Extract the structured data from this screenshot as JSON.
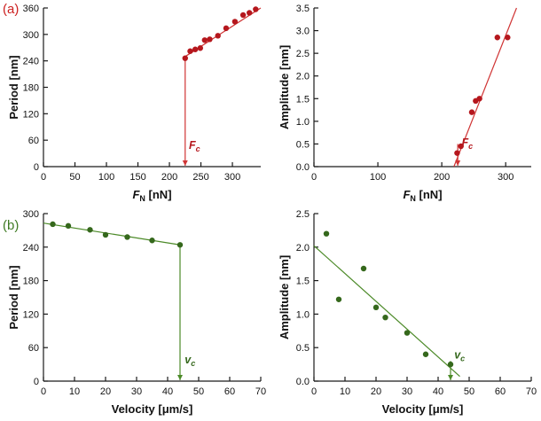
{
  "panels": {
    "a": "(a)",
    "b": "(b)"
  },
  "colors": {
    "panel_a": "#cc1f1f",
    "panel_b": "#3e7a22"
  },
  "chart_data": [
    {
      "name": "period-vs-normal-force",
      "type": "scatter",
      "color": "#b5171d",
      "line_color": "#d03434",
      "xlim": [
        0,
        345
      ],
      "ylim": [
        0,
        360
      ],
      "xticks": [
        0,
        50,
        100,
        150,
        200,
        250,
        300
      ],
      "xtick_labels": [
        "0",
        "50",
        "100",
        "150",
        "200",
        "250",
        "300"
      ],
      "yticks": [
        0,
        60,
        120,
        180,
        240,
        300,
        360
      ],
      "ytick_labels": [
        "0",
        "60",
        "120",
        "180",
        "240",
        "300",
        "360"
      ],
      "xlabel": [
        {
          "t": "F",
          "s": "i"
        },
        {
          "t": "N",
          "s": "sub"
        },
        {
          "t": " [nN]",
          "s": "n"
        }
      ],
      "ylabel": "Period [nm]",
      "points": [
        [
          225,
          246
        ],
        [
          233,
          262
        ],
        [
          241,
          266
        ],
        [
          249,
          269
        ],
        [
          256,
          287
        ],
        [
          264,
          289
        ],
        [
          277,
          297
        ],
        [
          290,
          314
        ],
        [
          304,
          329
        ],
        [
          317,
          344
        ],
        [
          327,
          349
        ],
        [
          337,
          357
        ]
      ],
      "line": [
        [
          222,
          247
        ],
        [
          345,
          360
        ]
      ],
      "marker": {
        "x": 225,
        "y_from": 246,
        "y_to": 0,
        "arrow": true,
        "label": [
          {
            "t": "F",
            "s": "i"
          },
          {
            "t": "c",
            "s": "sub"
          }
        ],
        "label_x": 231,
        "label_y": 40
      }
    },
    {
      "name": "amplitude-vs-normal-force",
      "type": "scatter",
      "color": "#b5171d",
      "line_color": "#d03434",
      "xlim": [
        0,
        340
      ],
      "ylim": [
        0,
        3.5
      ],
      "xticks": [
        0,
        100,
        200,
        300
      ],
      "xtick_labels": [
        "0",
        "100",
        "200",
        "300"
      ],
      "yticks": [
        0,
        0.5,
        1,
        1.5,
        2,
        2.5,
        3,
        3.5
      ],
      "ytick_labels": [
        "0.0",
        "0.5",
        "1.0",
        "1.5",
        "2.0",
        "2.5",
        "3.0",
        "3.5"
      ],
      "xlabel": [
        {
          "t": "F",
          "s": "i"
        },
        {
          "t": "N",
          "s": "sub"
        },
        {
          "t": " [nN]",
          "s": "n"
        }
      ],
      "ylabel": "Amplitude [nm]",
      "points": [
        [
          224,
          0.3
        ],
        [
          230,
          0.45
        ],
        [
          247,
          1.2
        ],
        [
          253,
          1.45
        ],
        [
          259,
          1.5
        ],
        [
          287,
          2.85
        ],
        [
          303,
          2.85
        ]
      ],
      "line": [
        [
          219,
          0
        ],
        [
          317,
          3.5
        ]
      ],
      "marker": {
        "x": 225,
        "y_from": 0.5,
        "y_to": 0,
        "arrow": true,
        "label": [
          {
            "t": "F",
            "s": "i"
          },
          {
            "t": "c",
            "s": "sub"
          }
        ],
        "label_x": 231,
        "label_y": 0.45
      }
    },
    {
      "name": "period-vs-velocity",
      "type": "scatter",
      "color": "#35681c",
      "line_color": "#4c8a28",
      "xlim": [
        0,
        70
      ],
      "ylim": [
        0,
        300
      ],
      "xticks": [
        0,
        10,
        20,
        30,
        40,
        50,
        60,
        70
      ],
      "xtick_labels": [
        "0",
        "10",
        "20",
        "30",
        "40",
        "50",
        "60",
        "70"
      ],
      "yticks": [
        0,
        60,
        120,
        180,
        240,
        300
      ],
      "ytick_labels": [
        "0",
        "60",
        "120",
        "180",
        "240",
        "300"
      ],
      "xlabel": [
        {
          "t": "Velocity [μm/s]",
          "s": "n"
        }
      ],
      "ylabel": "Period [nm]",
      "points": [
        [
          3,
          281
        ],
        [
          8,
          278
        ],
        [
          15,
          271
        ],
        [
          20,
          262
        ],
        [
          27,
          258
        ],
        [
          35,
          252
        ],
        [
          44,
          244
        ]
      ],
      "line": [
        [
          0,
          283
        ],
        [
          44,
          244
        ]
      ],
      "marker": {
        "x": 44,
        "y_from": 244,
        "y_to": 0,
        "arrow": true,
        "label": [
          {
            "t": "v",
            "s": "i"
          },
          {
            "t": "c",
            "s": "sub"
          }
        ],
        "label_x": 45.5,
        "label_y": 32
      }
    },
    {
      "name": "amplitude-vs-velocity",
      "type": "scatter",
      "color": "#35681c",
      "line_color": "#4c8a28",
      "xlim": [
        0,
        70
      ],
      "ylim": [
        0,
        2.5
      ],
      "xticks": [
        0,
        10,
        20,
        30,
        40,
        50,
        60,
        70
      ],
      "xtick_labels": [
        "0",
        "10",
        "20",
        "30",
        "40",
        "50",
        "60",
        "70"
      ],
      "yticks": [
        0,
        0.5,
        1,
        1.5,
        2,
        2.5
      ],
      "ytick_labels": [
        "0.0",
        "0.5",
        "1.0",
        "1.5",
        "2.0",
        "2.5"
      ],
      "xlabel": [
        {
          "t": "Velocity [μm/s]",
          "s": "n"
        }
      ],
      "ylabel": "Amplitude [nm]",
      "points": [
        [
          4,
          2.2
        ],
        [
          8,
          1.22
        ],
        [
          16,
          1.68
        ],
        [
          20,
          1.1
        ],
        [
          23,
          0.95
        ],
        [
          30,
          0.72
        ],
        [
          36,
          0.4
        ],
        [
          44,
          0.25
        ]
      ],
      "line": [
        [
          0,
          2.02
        ],
        [
          47,
          0.07
        ]
      ],
      "marker": {
        "x": 44,
        "y_from": 0.3,
        "y_to": 0,
        "arrow": true,
        "label": [
          {
            "t": "v",
            "s": "i"
          },
          {
            "t": "c",
            "s": "sub"
          }
        ],
        "label_x": 45.2,
        "label_y": 0.34
      }
    }
  ]
}
